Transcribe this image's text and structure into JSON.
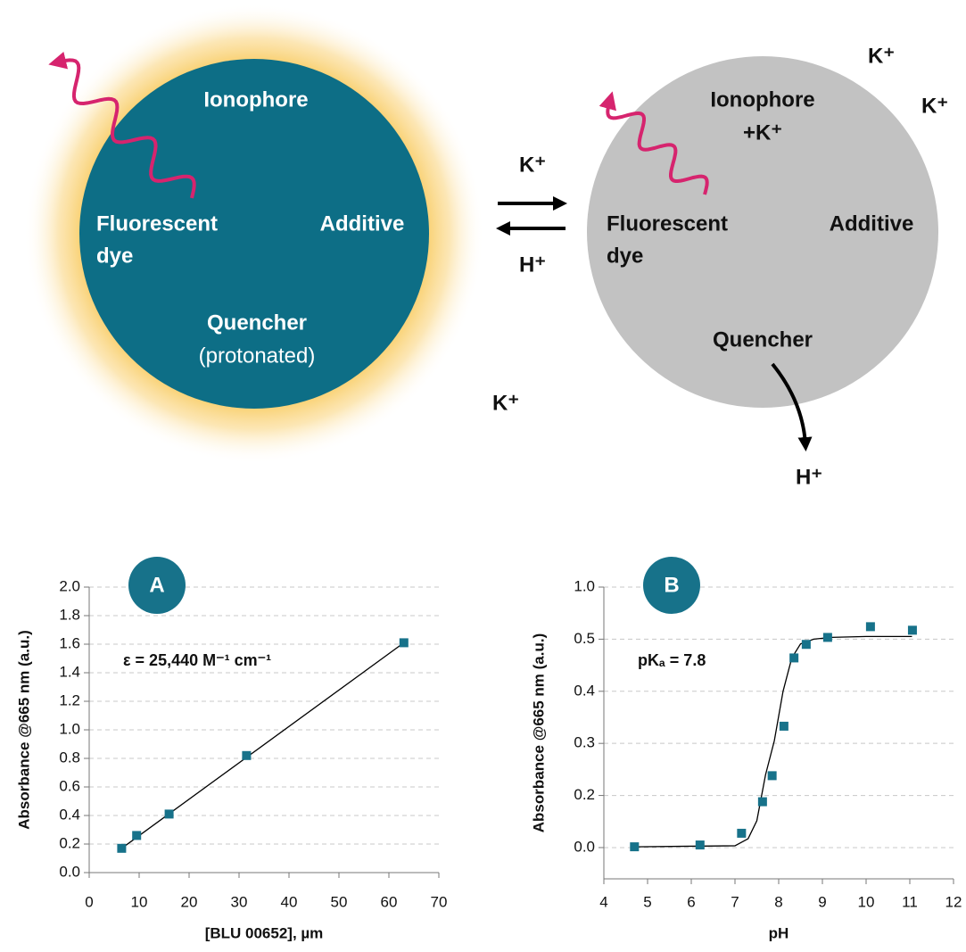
{
  "diagram": {
    "left": {
      "ionophore": "Ionophore",
      "dye": [
        "Fluorescent",
        "dye"
      ],
      "additive": "Additive",
      "quencher": "Quencher",
      "state": "(protonated)"
    },
    "exchange": {
      "forward": "K⁺",
      "reverse": "H⁺",
      "free": "K⁺"
    },
    "right": {
      "ionophore": "Ionophore",
      "bound": "+K⁺",
      "dye": [
        "Fluorescent",
        "dye"
      ],
      "additive": "Additive",
      "quencher": "Quencher",
      "released": "H⁺",
      "ions": [
        "K⁺",
        "K⁺"
      ]
    }
  },
  "chart_data": [
    {
      "type": "scatter",
      "badge": "A",
      "annotation": "ε = 25,440 M⁻¹ cm⁻¹",
      "xlabel": "[BLU 00652], µm",
      "ylabel": "Absorbance @665 nm (a.u.)",
      "x": [
        6.5,
        9.5,
        16,
        31.5,
        63
      ],
      "values": [
        0.17,
        0.26,
        0.41,
        0.82,
        1.61
      ],
      "color": "#17728a",
      "fit": {
        "x": [
          6.5,
          63
        ],
        "values": [
          0.17,
          1.61
        ],
        "color": "#000000"
      },
      "xlim": [
        0,
        70
      ],
      "xticks": [
        0,
        10,
        20,
        30,
        40,
        50,
        60,
        70
      ],
      "ylim": [
        0,
        2
      ],
      "yticks": [
        {
          "value": 0,
          "label": "0.0"
        },
        0.2,
        0.4,
        0.6,
        0.8,
        {
          "value": 1,
          "label": "1.0"
        },
        1.2,
        1.4,
        1.6,
        1.8,
        {
          "value": 2,
          "label": "2.0"
        }
      ],
      "grid": true
    },
    {
      "type": "scatter",
      "badge": "B",
      "annotation": "pKₐ = 7.8",
      "xlabel": "pH",
      "ylabel": "Absorbance @665 nm (a.u.)",
      "x": [
        4.7,
        6.2,
        7.15,
        7.63,
        7.85,
        8.12,
        8.35,
        8.63,
        9.12,
        10.1,
        11.06
      ],
      "values": [
        0.003,
        0.01,
        0.055,
        0.176,
        0.238,
        0.333,
        0.464,
        0.49,
        0.517,
        0.62,
        0.586
      ],
      "color": "#17728a",
      "fit": {
        "x": [
          4.7,
          7.0,
          7.3,
          7.5,
          7.7,
          7.9,
          8.1,
          8.3,
          8.5,
          8.8,
          9.2,
          10,
          11.05
        ],
        "values": [
          0.003,
          0.007,
          0.034,
          0.103,
          0.24,
          0.305,
          0.4,
          0.464,
          0.491,
          0.5,
          0.517,
          0.526,
          0.526
        ],
        "color": "#000000"
      },
      "xlim": [
        4,
        12
      ],
      "xticks": [
        4,
        5,
        6,
        7,
        8,
        9,
        10,
        11,
        12
      ],
      "ylim": [
        -0.12,
        1.0
      ],
      "yscale": "piecewise",
      "yticks": [
        {
          "value": 0,
          "label": "0.0"
        },
        0.2,
        0.3,
        0.4,
        0.5,
        {
          "value": 1,
          "label": "1.0"
        }
      ],
      "grid": true
    }
  ]
}
